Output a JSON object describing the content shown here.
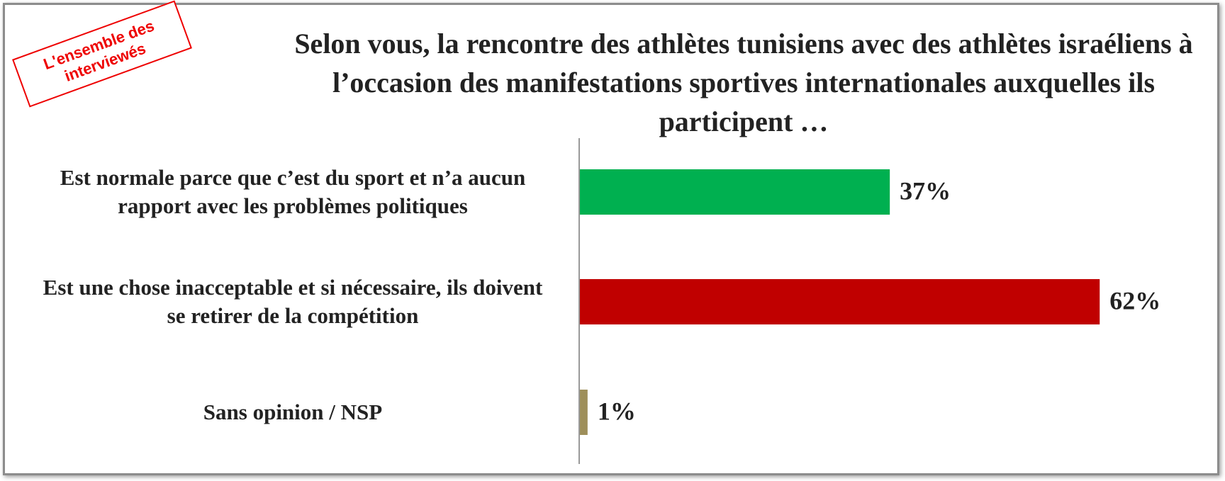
{
  "chart_data": {
    "type": "hbar",
    "title": "Selon vous, la rencontre des athlètes tunisiens avec des athlètes israéliens à l’occasion des manifestations sportives internationales auxquelles ils participent  …",
    "stamp": "L'ensemble des interviewés",
    "categories": [
      "Est normale parce que c’est du sport et n’a aucun rapport avec les problèmes politiques",
      "Est une chose inacceptable et si nécessaire, ils doivent se retirer de la compétition",
      "Sans opinion / NSP"
    ],
    "values": [
      37,
      62,
      1
    ],
    "value_labels": [
      "37%",
      "62%",
      "1%"
    ],
    "colors": [
      "#00b050",
      "#c00000",
      "#9e8f5a"
    ],
    "xlim": [
      0,
      70
    ]
  }
}
